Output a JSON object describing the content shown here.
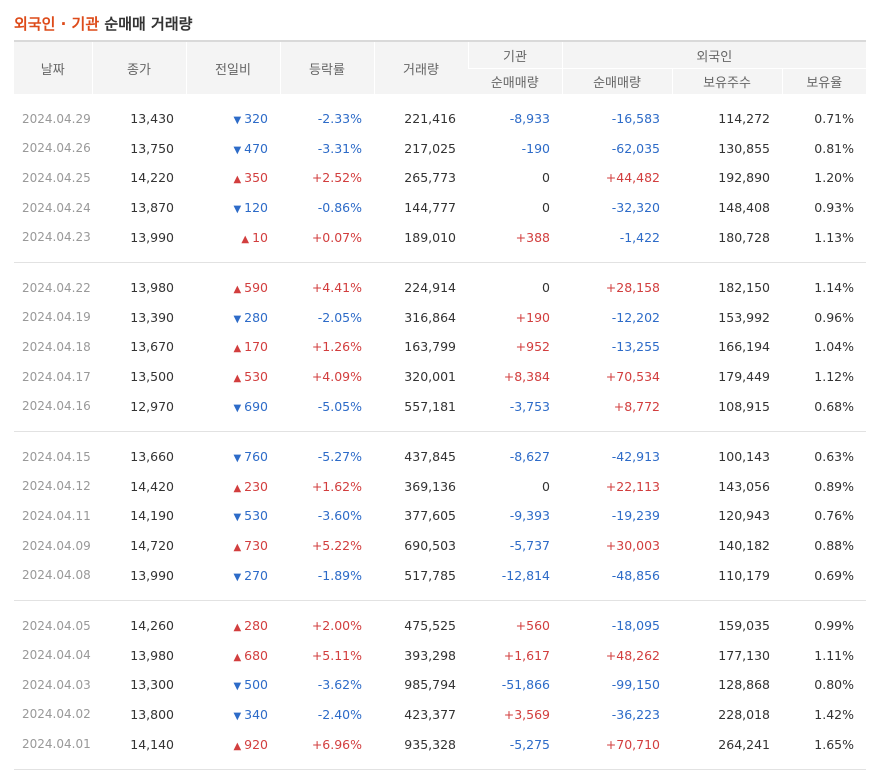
{
  "title": {
    "highlight": "외국인 · 기관",
    "rest": "순매매 거래량"
  },
  "headers": {
    "date": "날짜",
    "close": "종가",
    "diff": "전일비",
    "rate": "등락률",
    "volume": "거래량",
    "inst_group": "기관",
    "foreign_group": "외국인",
    "inst_net": "순매매량",
    "foreign_net": "순매매량",
    "holdings": "보유주수",
    "ratio": "보유율"
  },
  "colors": {
    "up": "#d23e3e",
    "down": "#2d6bc8",
    "title_highlight": "#dd4b1a"
  },
  "arrows": {
    "up": "▲",
    "down": "▼"
  },
  "groups": [
    [
      {
        "date": "2024.04.29",
        "close": "13,430",
        "dir": "down",
        "diff": "320",
        "rate": "-2.33%",
        "volume": "221,416",
        "inst": "-8,933",
        "foreign": "-16,583",
        "holdings": "114,272",
        "ratio": "0.71%"
      },
      {
        "date": "2024.04.26",
        "close": "13,750",
        "dir": "down",
        "diff": "470",
        "rate": "-3.31%",
        "volume": "217,025",
        "inst": "-190",
        "foreign": "-62,035",
        "holdings": "130,855",
        "ratio": "0.81%"
      },
      {
        "date": "2024.04.25",
        "close": "14,220",
        "dir": "up",
        "diff": "350",
        "rate": "+2.52%",
        "volume": "265,773",
        "inst": "0",
        "foreign": "+44,482",
        "holdings": "192,890",
        "ratio": "1.20%"
      },
      {
        "date": "2024.04.24",
        "close": "13,870",
        "dir": "down",
        "diff": "120",
        "rate": "-0.86%",
        "volume": "144,777",
        "inst": "0",
        "foreign": "-32,320",
        "holdings": "148,408",
        "ratio": "0.93%"
      },
      {
        "date": "2024.04.23",
        "close": "13,990",
        "dir": "up",
        "diff": "10",
        "rate": "+0.07%",
        "volume": "189,010",
        "inst": "+388",
        "foreign": "-1,422",
        "holdings": "180,728",
        "ratio": "1.13%"
      }
    ],
    [
      {
        "date": "2024.04.22",
        "close": "13,980",
        "dir": "up",
        "diff": "590",
        "rate": "+4.41%",
        "volume": "224,914",
        "inst": "0",
        "foreign": "+28,158",
        "holdings": "182,150",
        "ratio": "1.14%"
      },
      {
        "date": "2024.04.19",
        "close": "13,390",
        "dir": "down",
        "diff": "280",
        "rate": "-2.05%",
        "volume": "316,864",
        "inst": "+190",
        "foreign": "-12,202",
        "holdings": "153,992",
        "ratio": "0.96%"
      },
      {
        "date": "2024.04.18",
        "close": "13,670",
        "dir": "up",
        "diff": "170",
        "rate": "+1.26%",
        "volume": "163,799",
        "inst": "+952",
        "foreign": "-13,255",
        "holdings": "166,194",
        "ratio": "1.04%"
      },
      {
        "date": "2024.04.17",
        "close": "13,500",
        "dir": "up",
        "diff": "530",
        "rate": "+4.09%",
        "volume": "320,001",
        "inst": "+8,384",
        "foreign": "+70,534",
        "holdings": "179,449",
        "ratio": "1.12%"
      },
      {
        "date": "2024.04.16",
        "close": "12,970",
        "dir": "down",
        "diff": "690",
        "rate": "-5.05%",
        "volume": "557,181",
        "inst": "-3,753",
        "foreign": "+8,772",
        "holdings": "108,915",
        "ratio": "0.68%"
      }
    ],
    [
      {
        "date": "2024.04.15",
        "close": "13,660",
        "dir": "down",
        "diff": "760",
        "rate": "-5.27%",
        "volume": "437,845",
        "inst": "-8,627",
        "foreign": "-42,913",
        "holdings": "100,143",
        "ratio": "0.63%"
      },
      {
        "date": "2024.04.12",
        "close": "14,420",
        "dir": "up",
        "diff": "230",
        "rate": "+1.62%",
        "volume": "369,136",
        "inst": "0",
        "foreign": "+22,113",
        "holdings": "143,056",
        "ratio": "0.89%"
      },
      {
        "date": "2024.04.11",
        "close": "14,190",
        "dir": "down",
        "diff": "530",
        "rate": "-3.60%",
        "volume": "377,605",
        "inst": "-9,393",
        "foreign": "-19,239",
        "holdings": "120,943",
        "ratio": "0.76%"
      },
      {
        "date": "2024.04.09",
        "close": "14,720",
        "dir": "up",
        "diff": "730",
        "rate": "+5.22%",
        "volume": "690,503",
        "inst": "-5,737",
        "foreign": "+30,003",
        "holdings": "140,182",
        "ratio": "0.88%"
      },
      {
        "date": "2024.04.08",
        "close": "13,990",
        "dir": "down",
        "diff": "270",
        "rate": "-1.89%",
        "volume": "517,785",
        "inst": "-12,814",
        "foreign": "-48,856",
        "holdings": "110,179",
        "ratio": "0.69%"
      }
    ],
    [
      {
        "date": "2024.04.05",
        "close": "14,260",
        "dir": "up",
        "diff": "280",
        "rate": "+2.00%",
        "volume": "475,525",
        "inst": "+560",
        "foreign": "-18,095",
        "holdings": "159,035",
        "ratio": "0.99%"
      },
      {
        "date": "2024.04.04",
        "close": "13,980",
        "dir": "up",
        "diff": "680",
        "rate": "+5.11%",
        "volume": "393,298",
        "inst": "+1,617",
        "foreign": "+48,262",
        "holdings": "177,130",
        "ratio": "1.11%"
      },
      {
        "date": "2024.04.03",
        "close": "13,300",
        "dir": "down",
        "diff": "500",
        "rate": "-3.62%",
        "volume": "985,794",
        "inst": "-51,866",
        "foreign": "-99,150",
        "holdings": "128,868",
        "ratio": "0.80%"
      },
      {
        "date": "2024.04.02",
        "close": "13,800",
        "dir": "down",
        "diff": "340",
        "rate": "-2.40%",
        "volume": "423,377",
        "inst": "+3,569",
        "foreign": "-36,223",
        "holdings": "228,018",
        "ratio": "1.42%"
      },
      {
        "date": "2024.04.01",
        "close": "14,140",
        "dir": "up",
        "diff": "920",
        "rate": "+6.96%",
        "volume": "935,328",
        "inst": "-5,275",
        "foreign": "+70,710",
        "holdings": "264,241",
        "ratio": "1.65%"
      }
    ]
  ]
}
